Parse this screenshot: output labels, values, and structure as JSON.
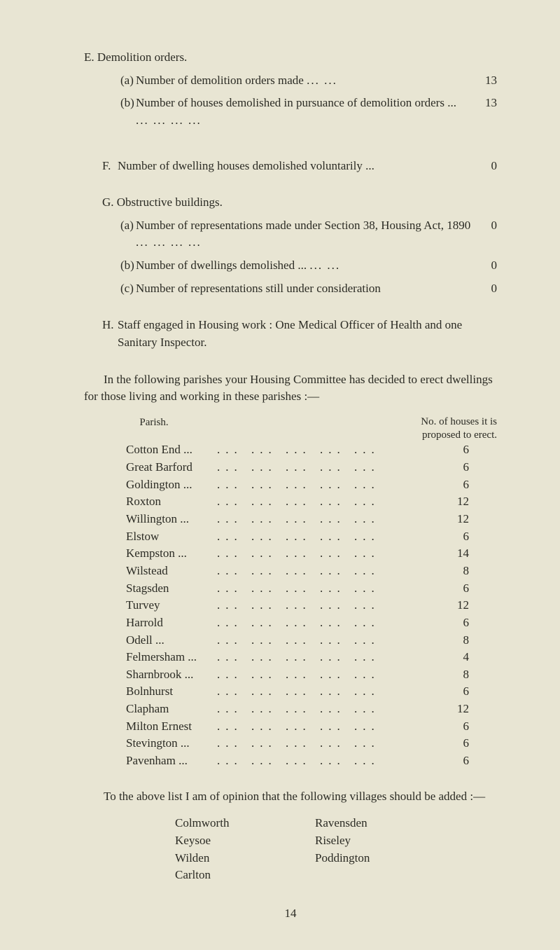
{
  "E": {
    "title": "E. Demolition orders.",
    "a": {
      "label": "(a)",
      "text": "Number of demolition orders made",
      "value": "13"
    },
    "b": {
      "label": "(b)",
      "text": "Number of houses demolished in pursuance of demolition orders ...",
      "value": "13"
    }
  },
  "F": {
    "label": "F.",
    "text": "Number of dwelling houses demolished voluntarily   ...",
    "value": "0"
  },
  "G": {
    "title": "G. Obstructive buildings.",
    "a": {
      "label": "(a)",
      "text": "Number of representations made under Section 38, Housing Act, 1890",
      "value": "0"
    },
    "b": {
      "label": "(b)",
      "text": "Number of dwellings demolished  ...",
      "value": "0"
    },
    "c": {
      "label": "(c)",
      "text": "Number of representations still under consideration",
      "value": "0"
    }
  },
  "H": {
    "label": "H.",
    "text": "Staff engaged in Housing work :  One Medical Officer of Health and one Sanitary Inspector."
  },
  "intro": "In the following parishes your Housing Committee has decided to erect dwellings for those living and working in these parishes :—",
  "table": {
    "parishHeader": "Parish.",
    "numHeader1": "No. of houses it is",
    "numHeader2": "proposed to erect.",
    "rows": [
      {
        "name": "Cotton End ...",
        "value": "6"
      },
      {
        "name": "Great Barford",
        "value": "6"
      },
      {
        "name": "Goldington ...",
        "value": "6"
      },
      {
        "name": "Roxton",
        "value": "12"
      },
      {
        "name": "Willington ...",
        "value": "12"
      },
      {
        "name": "Elstow",
        "value": "6"
      },
      {
        "name": "Kempston  ...",
        "value": "14"
      },
      {
        "name": "Wilstead",
        "value": "8"
      },
      {
        "name": "Stagsden",
        "value": "6"
      },
      {
        "name": "Turvey",
        "value": "12"
      },
      {
        "name": "Harrold",
        "value": "6"
      },
      {
        "name": "Odell ...",
        "value": "8"
      },
      {
        "name": "Felmersham ...",
        "value": "4"
      },
      {
        "name": "Sharnbrook ...",
        "value": "8"
      },
      {
        "name": "Bolnhurst",
        "value": "6"
      },
      {
        "name": "Clapham",
        "value": "12"
      },
      {
        "name": "Milton Ernest",
        "value": "6"
      },
      {
        "name": "Stevington  ...",
        "value": "6"
      },
      {
        "name": "Pavenham   ...",
        "value": "6"
      }
    ]
  },
  "opinion": "To the above list I am of opinion that the following villages should be added :—",
  "villages": {
    "col1": [
      "Colmworth",
      "Keysoe",
      "Wilden",
      "Carlton"
    ],
    "col2": [
      "Ravensden",
      "Riseley",
      "Poddington"
    ]
  },
  "pageNumber": "14"
}
